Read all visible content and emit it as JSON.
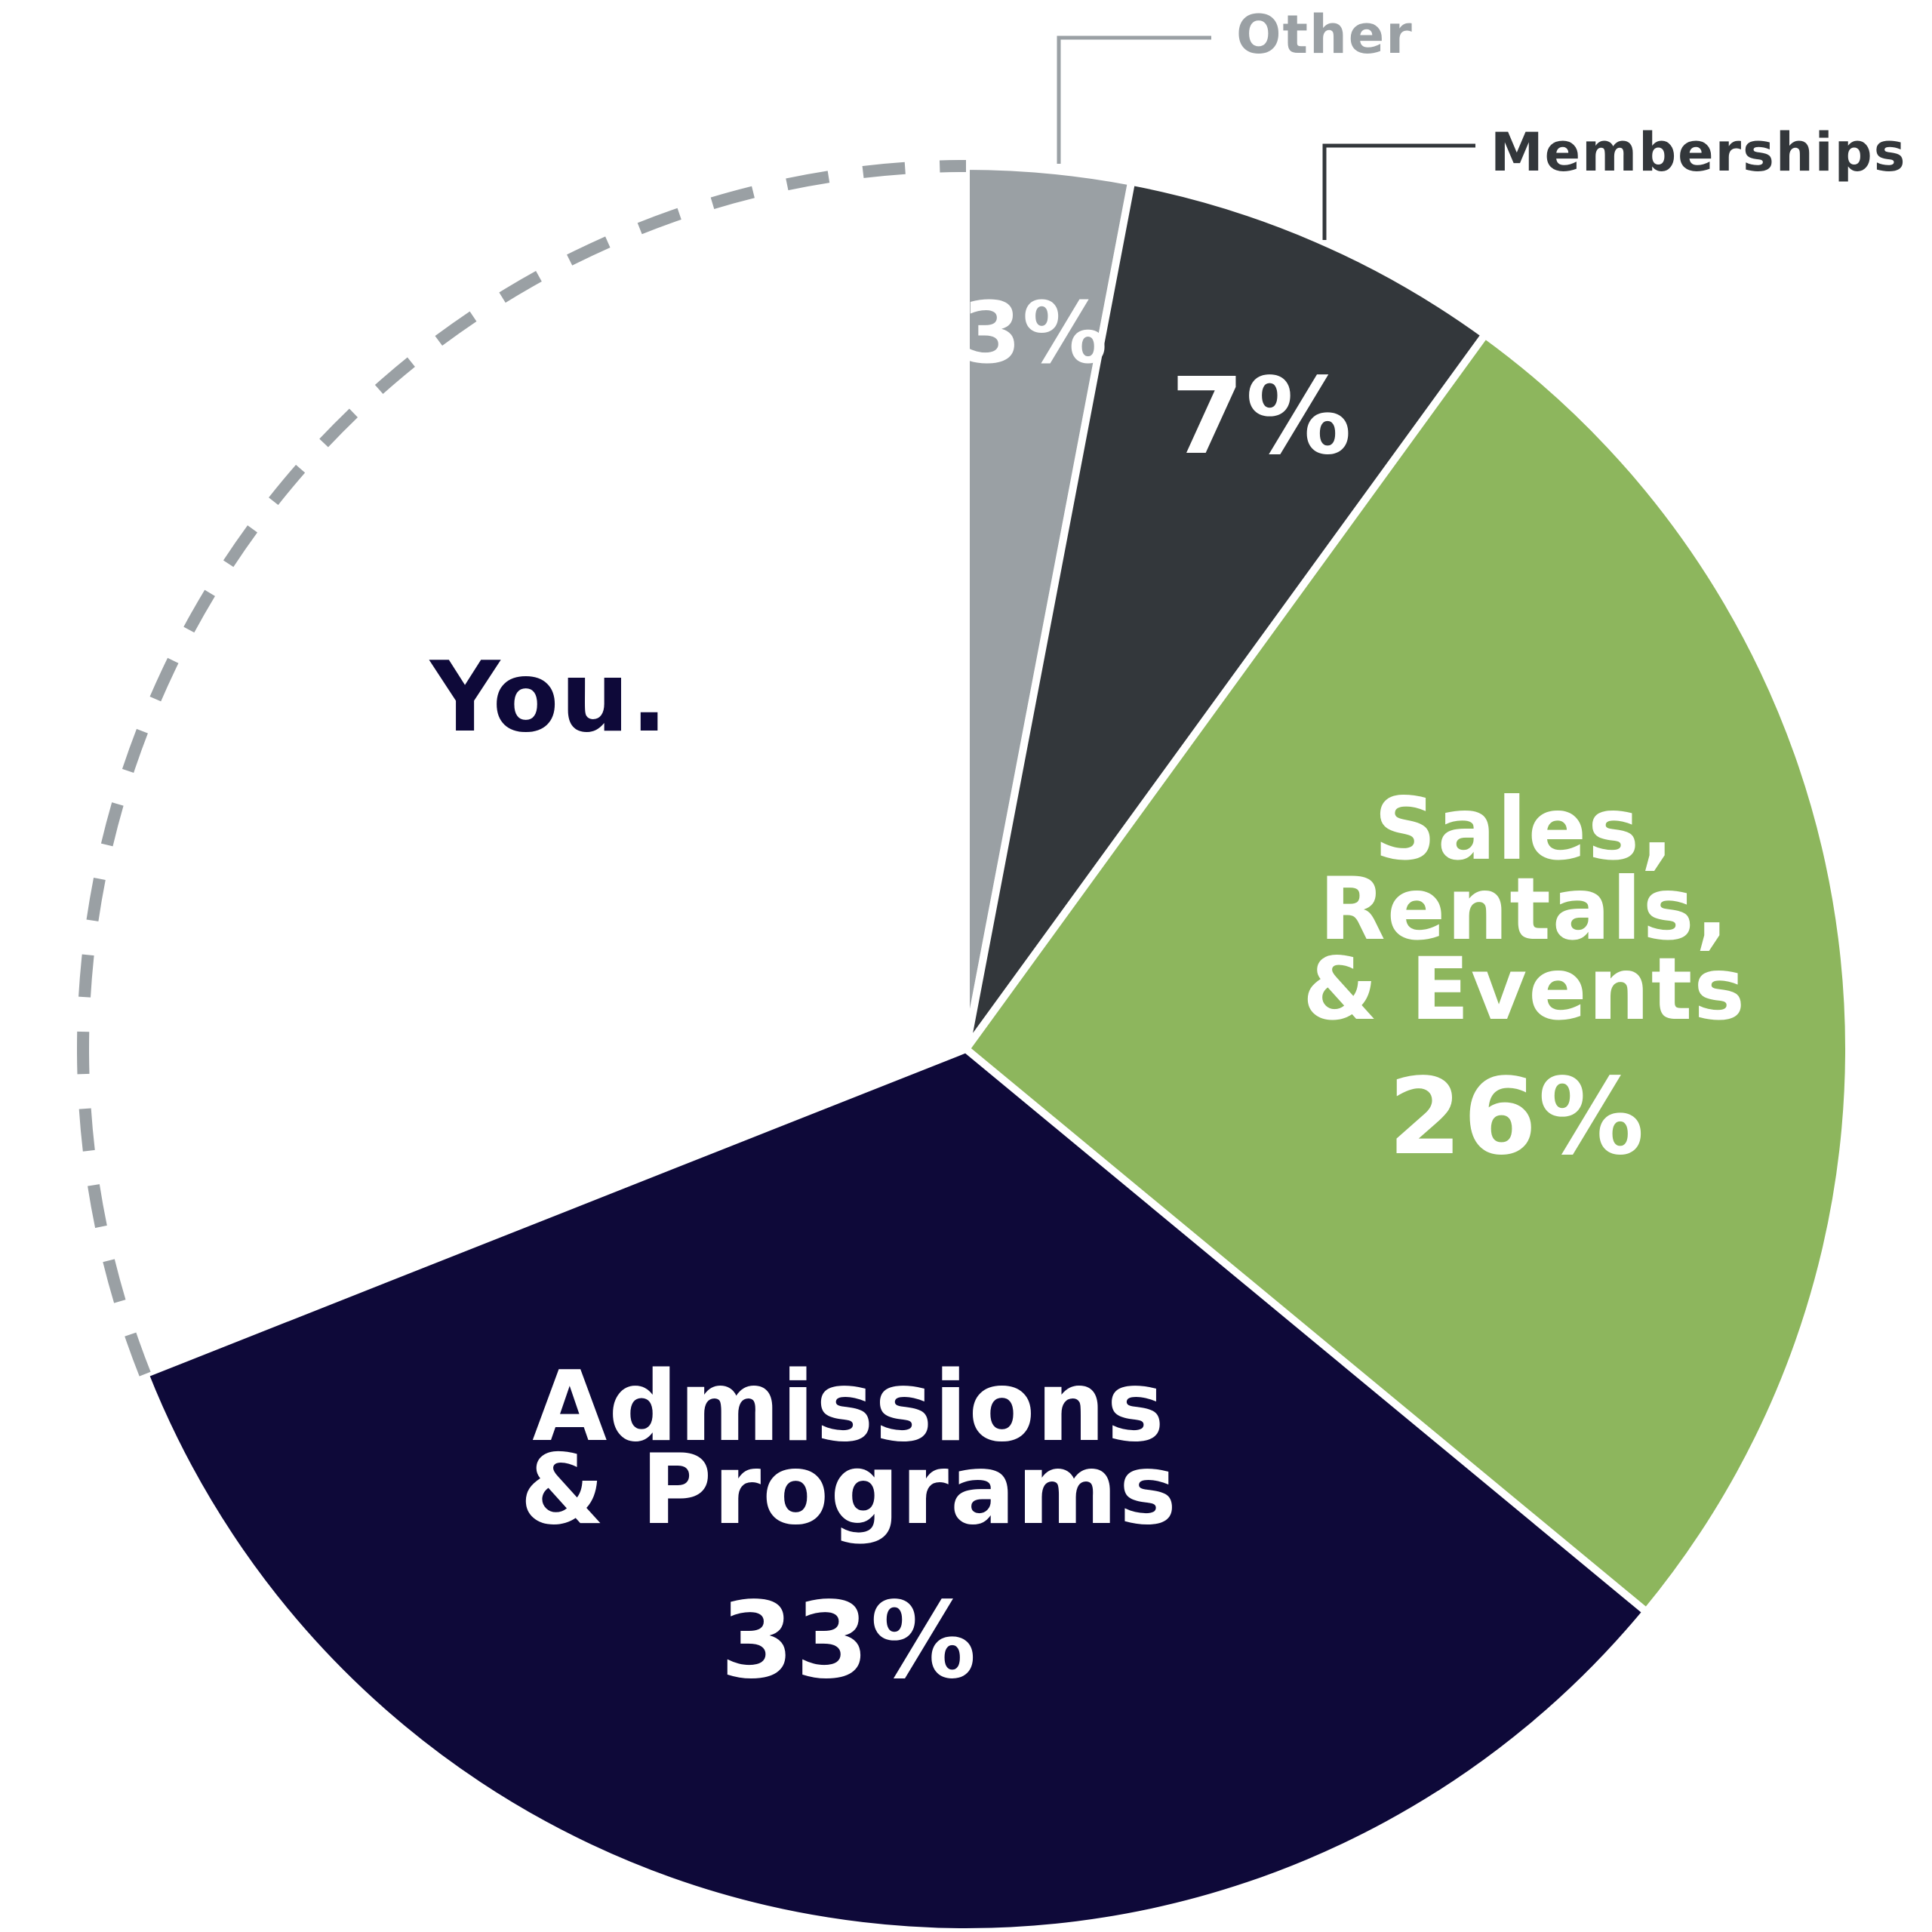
{
  "chart_data": {
    "type": "pie",
    "title": "",
    "slices": [
      {
        "key": "other",
        "name": "Other",
        "value": 3,
        "value_label": "3%",
        "color": "#9aa0a4"
      },
      {
        "key": "memberships",
        "name": "Memberships",
        "value": 7,
        "value_label": "7%",
        "color": "#33373b"
      },
      {
        "key": "sales",
        "name_lines": [
          "Sales,",
          "Rentals,",
          "& Events"
        ],
        "value": 26,
        "value_label": "26%",
        "color": "#8db65d"
      },
      {
        "key": "admissions",
        "name_lines": [
          "Admissions",
          "& Programs"
        ],
        "value": 33,
        "value_label": "33%",
        "color": "#0e0939"
      },
      {
        "key": "you",
        "name": "You.",
        "value": 31,
        "value_label": "",
        "color": "#ffffff",
        "outline": "dashed"
      }
    ],
    "colors": {
      "outline_dashes": "#9aa0a4",
      "you_label": "#0e0939",
      "slice_text": "#ffffff",
      "slice_separator": "#ffffff"
    },
    "start_angle": "top (12 o'clock)",
    "direction": "clockwise"
  }
}
